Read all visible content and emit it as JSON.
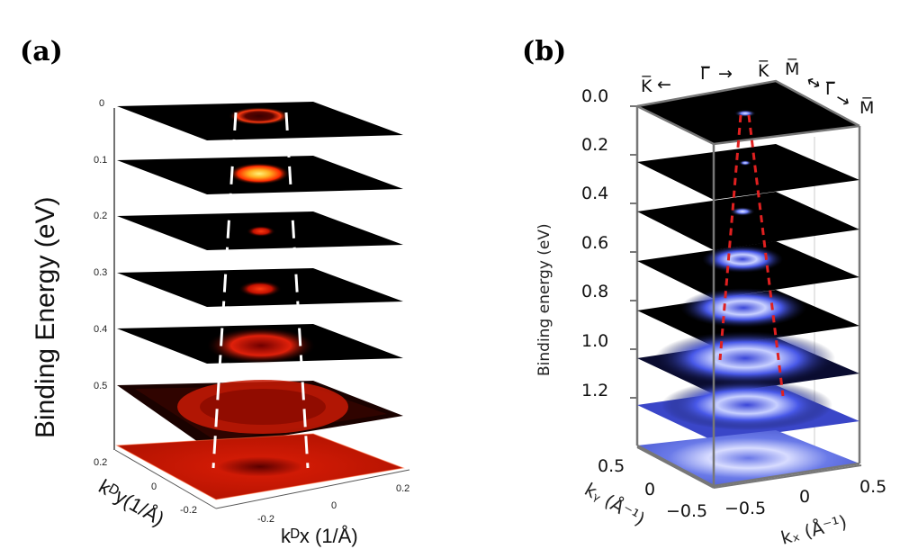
{
  "panel_a": {
    "label": "(a)",
    "y_axis_label": "Binding Energy (eV)",
    "y_ticks": [
      "0",
      "0.1",
      "0.2",
      "0.3",
      "0.4",
      "0.5"
    ],
    "ky_label": "kᴰy(1/Å)",
    "kx_label": "kᴰx (1/Å)",
    "ky_ticks": [
      "0.2",
      "0",
      "-0.2"
    ],
    "kx_ticks": [
      "-0.2",
      "0",
      "0.2"
    ],
    "colors": {
      "slice_bg": "#000000",
      "spot": "#ff3010",
      "bottom": "#cc1a05"
    }
  },
  "panel_b": {
    "label": "(b)",
    "y_axis_label": "Binding energy (eV)",
    "y_ticks": [
      "0.0",
      "0.2",
      "0.4",
      "0.6",
      "0.8",
      "1.0",
      "1.2"
    ],
    "ky_label": "kᵧ (Å⁻¹)",
    "kx_label": "kₓ (Å⁻¹)",
    "ky_ticks": [
      "0.5",
      "0",
      "−0.5"
    ],
    "kx_ticks": [
      "−0.5",
      "0",
      "0.5"
    ],
    "symmetry_labels": {
      "k_bar_left": "K̅",
      "gamma_bar_1": "Γ̅",
      "k_bar_right": "K̅",
      "m_bar_1": "M̅",
      "gamma_bar_2": "Γ̅",
      "m_bar_2": "M̅"
    },
    "colors": {
      "slice_bg": "#000000",
      "spot": "#5a6cff",
      "frame": "#777777",
      "guide": "#e02020"
    }
  }
}
